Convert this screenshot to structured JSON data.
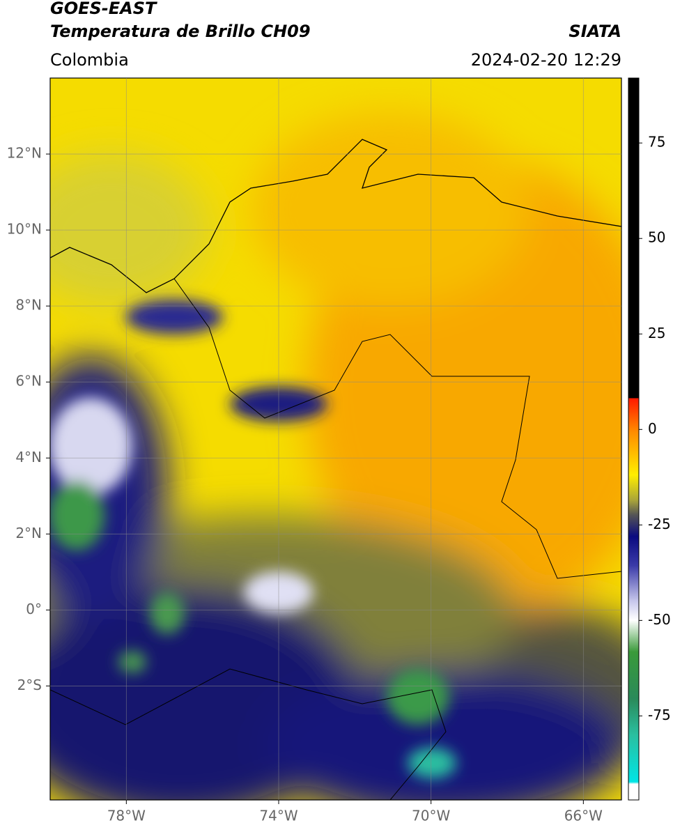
{
  "header": {
    "title": "GOES-EAST",
    "subtitle": "Temperatura de Brillo CH09",
    "source": "SIATA",
    "region": "Colombia",
    "timestamp": "2024-02-20 12:29"
  },
  "map": {
    "xlim": [
      -80,
      -65
    ],
    "ylim": [
      -5,
      14
    ],
    "xticks": [
      {
        "value": -78,
        "label": "78°W"
      },
      {
        "value": -74,
        "label": "74°W"
      },
      {
        "value": -70,
        "label": "70°W"
      },
      {
        "value": -66,
        "label": "66°W"
      }
    ],
    "yticks": [
      {
        "value": 12,
        "label": "12°N"
      },
      {
        "value": 10,
        "label": "10°N"
      },
      {
        "value": 8,
        "label": "8°N"
      },
      {
        "value": 6,
        "label": "6°N"
      },
      {
        "value": 4,
        "label": "4°N"
      },
      {
        "value": 2,
        "label": "2°N"
      },
      {
        "value": 0,
        "label": "0°"
      },
      {
        "value": -2,
        "label": "2°S"
      }
    ],
    "grid": true
  },
  "colorbar": {
    "lim": [
      -97,
      92
    ],
    "ticks": [
      75,
      50,
      25,
      0,
      -25,
      -50,
      -75
    ]
  }
}
